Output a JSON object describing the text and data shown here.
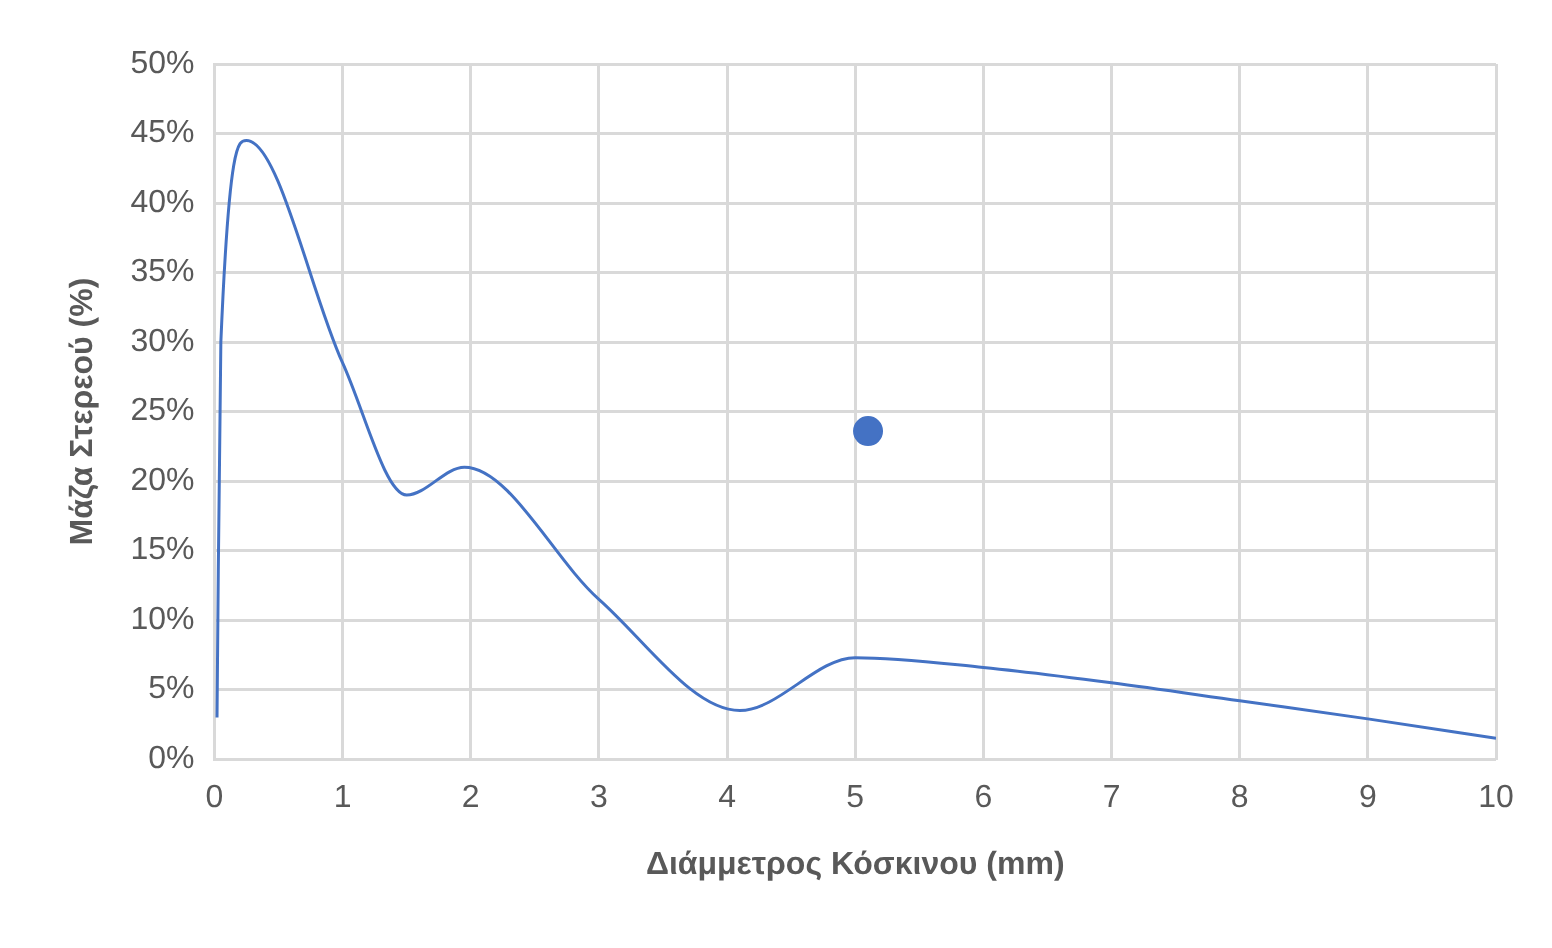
{
  "chart_data": {
    "type": "line",
    "xlabel": "Διάμμετρος Κόσκινου (mm)",
    "ylabel": "Μάζα Στερεού (%)",
    "series": [
      {
        "type": "line",
        "color": "#4472c4",
        "x": [
          0.02,
          0.05,
          0.25,
          1,
          1.5,
          1.95,
          3,
          4.1,
          5,
          6,
          7,
          8,
          9,
          10
        ],
        "values": [
          3,
          30,
          44.5,
          28.5,
          19,
          21,
          11.5,
          3.5,
          7.3,
          6.6,
          5.5,
          4.2,
          2.9,
          1.5
        ]
      },
      {
        "type": "scatter",
        "color": "#4472c4",
        "x": [
          5.1
        ],
        "values": [
          23.6
        ]
      }
    ],
    "xlim": [
      0,
      10
    ],
    "xticks": [
      0,
      1,
      2,
      3,
      4,
      5,
      6,
      7,
      8,
      9,
      10
    ],
    "ylim": [
      0,
      50
    ],
    "yticks": [
      {
        "value": 0,
        "label": "0%"
      },
      {
        "value": 5,
        "label": "5%"
      },
      {
        "value": 10,
        "label": "10%"
      },
      {
        "value": 15,
        "label": "15%"
      },
      {
        "value": 20,
        "label": "20%"
      },
      {
        "value": 25,
        "label": "25%"
      },
      {
        "value": 30,
        "label": "30%"
      },
      {
        "value": 35,
        "label": "35%"
      },
      {
        "value": 40,
        "label": "40%"
      },
      {
        "value": 45,
        "label": "45%"
      },
      {
        "value": 50,
        "label": "50%"
      }
    ],
    "grid": true,
    "legend": false
  }
}
